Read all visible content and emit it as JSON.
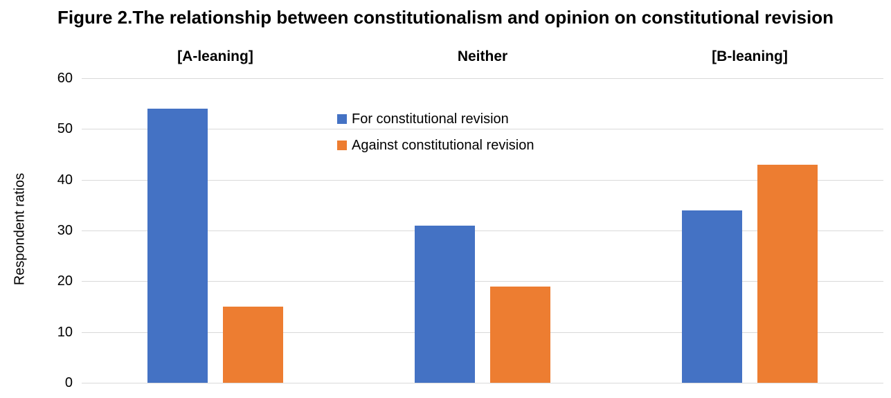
{
  "title": "Figure 2.The relationship between constitutionalism and opinion on constitutional revision",
  "chart_data": {
    "type": "bar",
    "title": "Figure 2.The relationship between constitutionalism and opinion on constitutional revision",
    "categories": [
      "[A-leaning]",
      "Neither",
      "[B-leaning]"
    ],
    "series": [
      {
        "name": "For constitutional revision",
        "color": "#4472C4",
        "values": [
          54,
          31,
          34
        ]
      },
      {
        "name": "Against constitutional revision",
        "color": "#ED7D31",
        "values": [
          15,
          19,
          43
        ]
      }
    ],
    "xlabel": "",
    "ylabel": "Respondent ratios",
    "ylim": [
      0,
      60
    ],
    "yticks": [
      0,
      10,
      20,
      30,
      40,
      50,
      60
    ],
    "grid": "horizontal",
    "gridline_color": "#D9D9D9",
    "legend_position": "inside-top-center",
    "background_color": "#FFFFFF",
    "text_color": "#000000"
  }
}
